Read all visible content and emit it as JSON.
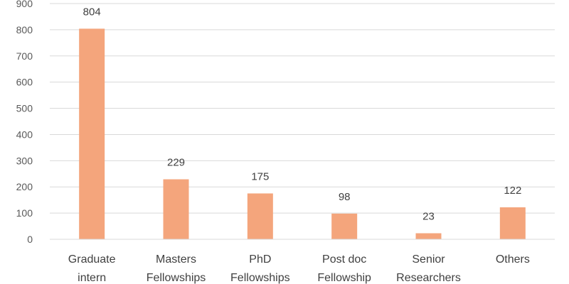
{
  "chart_data": {
    "type": "bar",
    "title": "",
    "xlabel": "",
    "ylabel": "",
    "categories": [
      [
        "Graduate",
        "intern"
      ],
      [
        "Masters",
        "Fellowships"
      ],
      [
        "PhD",
        "Fellowships"
      ],
      [
        "Post doc",
        "Fellowship"
      ],
      [
        "Senior",
        "Researchers"
      ],
      [
        "Others"
      ]
    ],
    "values": [
      804,
      229,
      175,
      98,
      23,
      122
    ],
    "data_labels": [
      "804",
      "229",
      "175",
      "98",
      "23",
      "122"
    ],
    "ylim": [
      0,
      900
    ],
    "yticks": [
      0,
      100,
      200,
      300,
      400,
      500,
      600,
      700,
      800,
      900
    ],
    "ytick_labels": [
      "0",
      "100",
      "200",
      "300",
      "400",
      "500",
      "600",
      "700",
      "800",
      "900"
    ],
    "grid": true,
    "legend": "none",
    "colors": {
      "bar_fill": "#F4A57C",
      "gridline": "#D9D9D9",
      "text": "#404040"
    }
  }
}
